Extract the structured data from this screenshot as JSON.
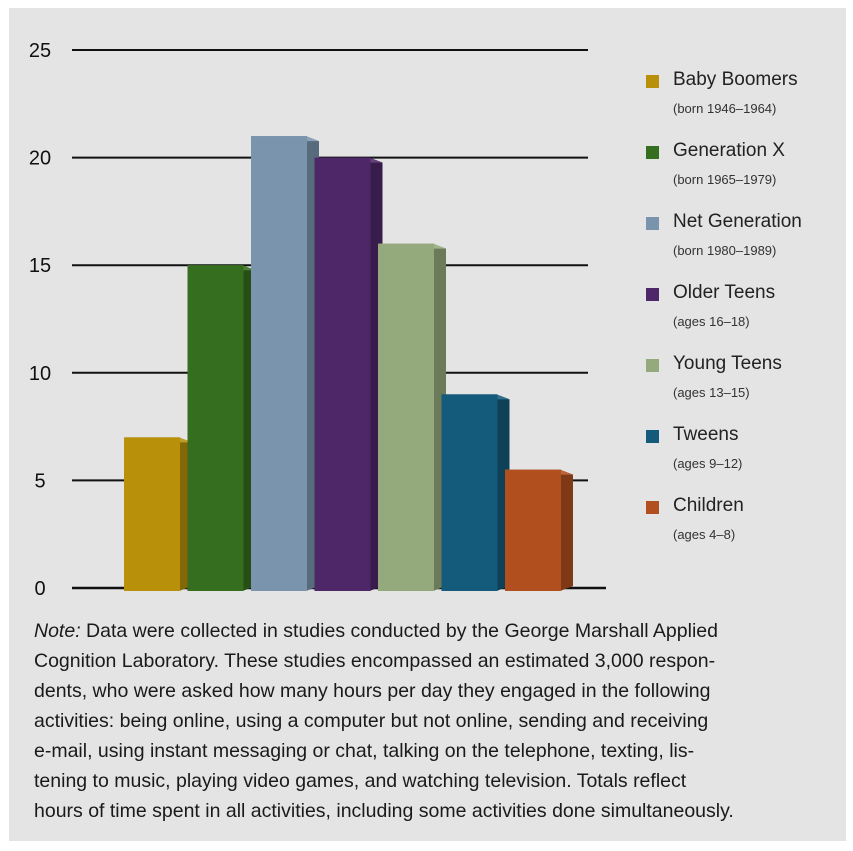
{
  "chart_data": {
    "type": "bar",
    "ylim": [
      0,
      25
    ],
    "yticks": [
      "0",
      "5",
      "10",
      "15",
      "20",
      "25"
    ],
    "grid": true,
    "legend_position": "right",
    "categories": [
      "Baby Boomers",
      "Generation X",
      "Net Generation",
      "Older Teens",
      "Young Teens",
      "Tweens",
      "Children"
    ],
    "values": [
      7,
      15,
      21,
      20,
      16,
      9,
      5.5
    ],
    "series": [
      {
        "name": "Baby Boomers",
        "subtitle": "(born 1946–1964)",
        "value": 7,
        "color": "#b8900a"
      },
      {
        "name": "Generation X",
        "subtitle": "(born 1965–1979)",
        "value": 15,
        "color": "#356e1f"
      },
      {
        "name": "Net Generation",
        "subtitle": "(born 1980–1989)",
        "value": 21,
        "color": "#7a94ae"
      },
      {
        "name": "Older Teens",
        "subtitle": "(ages 16–18)",
        "value": 20,
        "color": "#4e2768"
      },
      {
        "name": "Young Teens",
        "subtitle": "(ages 13–15)",
        "value": 16,
        "color": "#94aa7c"
      },
      {
        "name": "Tweens",
        "subtitle": "(ages 9–12)",
        "value": 9,
        "color": "#145a7a"
      },
      {
        "name": "Children",
        "subtitle": "(ages 4–8)",
        "value": 5.5,
        "color": "#b24f1e"
      }
    ]
  },
  "note": {
    "label": "Note:",
    "lines": [
      " Data were collected in studies conducted by the George Marshall Applied",
      "Cognition Laboratory. These studies encompassed an estimated 3,000 respon-",
      "dents, who were asked how many hours per day they engaged in the following",
      "activities: being online, using a computer but not online, sending and receiving",
      "e-mail, using instant messaging or chat, talking on the telephone, texting, lis-",
      "tening to music, playing video games, and watching television. Totals reflect",
      "hours of time spent in all activities, including some activities done simultaneously."
    ]
  }
}
